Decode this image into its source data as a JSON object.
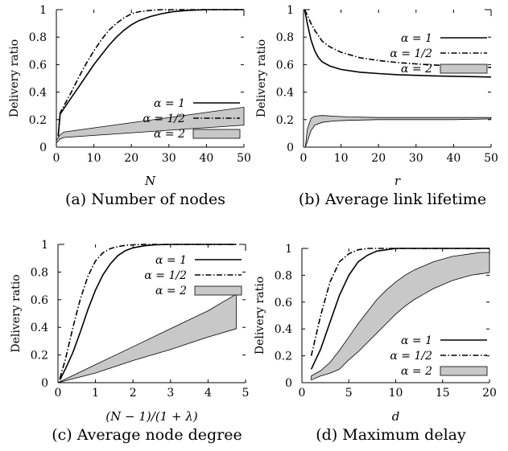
{
  "chart_data": [
    {
      "type": "line",
      "caption": "(a) Number of nodes",
      "xlabel": "N",
      "ylabel": "Delivery ratio",
      "xlim": [
        0,
        50
      ],
      "ylim": [
        0,
        1
      ],
      "xticks": [
        0,
        10,
        20,
        30,
        40,
        50
      ],
      "yticks": [
        0,
        0.2,
        0.4,
        0.6,
        0.8,
        1
      ],
      "legend_position": "middle-right",
      "grid": false,
      "series": [
        {
          "name": "α = 1",
          "style": "solid",
          "x": [
            0.5,
            1,
            2,
            4,
            6,
            8,
            10,
            12,
            14,
            16,
            18,
            20,
            22,
            25,
            28,
            31,
            35,
            40,
            45,
            50
          ],
          "y": [
            0.08,
            0.24,
            0.28,
            0.36,
            0.44,
            0.52,
            0.6,
            0.67,
            0.74,
            0.8,
            0.85,
            0.89,
            0.92,
            0.95,
            0.97,
            0.985,
            0.995,
            1.0,
            1.0,
            1.0
          ]
        },
        {
          "name": "α = 1/2",
          "style": "dashdot",
          "x": [
            0.5,
            1,
            2,
            4,
            6,
            8,
            10,
            12,
            14,
            16,
            18,
            20,
            22,
            25,
            28,
            31,
            35,
            40,
            45,
            50
          ],
          "y": [
            0.08,
            0.25,
            0.3,
            0.4,
            0.51,
            0.61,
            0.7,
            0.78,
            0.85,
            0.9,
            0.94,
            0.97,
            0.985,
            0.995,
            1.0,
            1.0,
            1.0,
            1.0,
            1.0,
            1.0
          ]
        },
        {
          "name": "α = 2",
          "style": "band",
          "x": [
            0,
            1,
            2,
            50
          ],
          "lower": [
            0.03,
            0.06,
            0.07,
            0.16
          ],
          "upper": [
            0.05,
            0.09,
            0.11,
            0.29
          ]
        }
      ]
    },
    {
      "type": "line",
      "caption": "(b) Average link lifetime",
      "xlabel": "r",
      "ylabel": "Delivery ratio",
      "xlim": [
        0,
        50
      ],
      "ylim": [
        0,
        1
      ],
      "xticks": [
        0,
        10,
        20,
        30,
        40,
        50
      ],
      "yticks": [
        0,
        0.2,
        0.4,
        0.6,
        0.8,
        1
      ],
      "legend_position": "top-right",
      "grid": false,
      "series": [
        {
          "name": "α = 1",
          "style": "solid",
          "x": [
            0.3,
            1,
            2,
            3,
            4,
            5,
            7,
            10,
            15,
            20,
            25,
            30,
            35,
            40,
            45,
            50
          ],
          "y": [
            1.0,
            0.9,
            0.78,
            0.7,
            0.65,
            0.62,
            0.59,
            0.565,
            0.545,
            0.535,
            0.527,
            0.522,
            0.518,
            0.515,
            0.513,
            0.51
          ]
        },
        {
          "name": "α = 1/2",
          "style": "dashdot",
          "x": [
            0.3,
            1,
            2,
            3,
            4,
            5,
            7,
            10,
            15,
            20,
            25,
            30,
            35,
            40,
            45,
            50
          ],
          "y": [
            1.0,
            0.96,
            0.9,
            0.85,
            0.81,
            0.77,
            0.73,
            0.69,
            0.65,
            0.63,
            0.615,
            0.605,
            0.597,
            0.59,
            0.585,
            0.58
          ]
        },
        {
          "name": "α = 2",
          "style": "band",
          "x": [
            0.3,
            0.5,
            1,
            2,
            3,
            5,
            8,
            12,
            20,
            30,
            40,
            50
          ],
          "lower": [
            0.0,
            0.0,
            0.04,
            0.12,
            0.16,
            0.18,
            0.19,
            0.195,
            0.2,
            0.2,
            0.2,
            0.205
          ],
          "upper": [
            0.0,
            0.0,
            0.13,
            0.21,
            0.225,
            0.23,
            0.225,
            0.22,
            0.215,
            0.215,
            0.215,
            0.215
          ]
        }
      ]
    },
    {
      "type": "line",
      "caption": "(c) Average node degree",
      "xlabel": "(N − 1)/(1 + λ)",
      "ylabel": "Delivery ratio",
      "xlim": [
        0,
        5
      ],
      "ylim": [
        0,
        1
      ],
      "xticks": [
        0,
        1,
        2,
        3,
        4,
        5
      ],
      "yticks": [
        0,
        0.2,
        0.4,
        0.6,
        0.8,
        1
      ],
      "legend_position": "top-right",
      "grid": false,
      "series": [
        {
          "name": "α = 1",
          "style": "solid",
          "x": [
            0.05,
            0.2,
            0.4,
            0.6,
            0.8,
            1.0,
            1.2,
            1.4,
            1.6,
            1.8,
            2.0,
            2.3,
            2.6,
            3.0,
            3.5,
            4.0,
            4.75
          ],
          "y": [
            0.02,
            0.1,
            0.22,
            0.37,
            0.53,
            0.67,
            0.78,
            0.86,
            0.92,
            0.955,
            0.975,
            0.99,
            0.997,
            1.0,
            1.0,
            1.0,
            1.0
          ]
        },
        {
          "name": "α = 1/2",
          "style": "dashdot",
          "x": [
            0.05,
            0.2,
            0.4,
            0.6,
            0.8,
            1.0,
            1.2,
            1.4,
            1.6,
            1.8,
            2.0,
            2.3,
            2.6,
            3.0,
            3.5,
            4.0,
            4.75
          ],
          "y": [
            0.03,
            0.17,
            0.4,
            0.61,
            0.77,
            0.88,
            0.94,
            0.97,
            0.985,
            0.993,
            0.997,
            1.0,
            1.0,
            1.0,
            1.0,
            1.0,
            1.0
          ]
        },
        {
          "name": "α = 2",
          "style": "band",
          "x": [
            0,
            1,
            2,
            3,
            4,
            4.75
          ],
          "lower": [
            0.0,
            0.07,
            0.16,
            0.24,
            0.33,
            0.39
          ],
          "upper": [
            0.0,
            0.13,
            0.26,
            0.39,
            0.52,
            0.64
          ]
        }
      ]
    },
    {
      "type": "line",
      "caption": "(d) Maximum delay",
      "xlabel": "d",
      "ylabel": "Delivery ratio",
      "xlim": [
        0,
        20
      ],
      "ylim": [
        0,
        1
      ],
      "xticks": [
        0,
        5,
        10,
        15,
        20
      ],
      "yticks": [
        0,
        0.2,
        0.4,
        0.6,
        0.8,
        1
      ],
      "legend_position": "bottom-right",
      "grid": false,
      "series": [
        {
          "name": "α = 1",
          "style": "solid",
          "x": [
            1,
            2,
            3,
            4,
            5,
            6,
            7,
            8,
            9,
            10,
            12,
            15,
            20
          ],
          "y": [
            0.1,
            0.25,
            0.45,
            0.65,
            0.8,
            0.9,
            0.95,
            0.98,
            0.99,
            1.0,
            1.0,
            1.0,
            1.0
          ]
        },
        {
          "name": "α = 1/2",
          "style": "dashdot",
          "x": [
            1,
            2,
            3,
            4,
            5,
            6,
            7,
            8,
            10,
            12,
            15,
            20
          ],
          "y": [
            0.2,
            0.5,
            0.75,
            0.9,
            0.96,
            0.99,
            1.0,
            1.0,
            1.0,
            1.0,
            1.0,
            1.0
          ]
        },
        {
          "name": "α = 2",
          "style": "band",
          "x": [
            1,
            2,
            3,
            4,
            5,
            6,
            7,
            8,
            9,
            10,
            11,
            12,
            13,
            14,
            15,
            16,
            17,
            18,
            19,
            20
          ],
          "lower": [
            0.02,
            0.05,
            0.07,
            0.1,
            0.17,
            0.23,
            0.3,
            0.37,
            0.44,
            0.51,
            0.57,
            0.62,
            0.66,
            0.7,
            0.73,
            0.76,
            0.78,
            0.8,
            0.81,
            0.82
          ],
          "upper": [
            0.05,
            0.09,
            0.15,
            0.24,
            0.34,
            0.44,
            0.53,
            0.62,
            0.69,
            0.75,
            0.8,
            0.84,
            0.87,
            0.9,
            0.92,
            0.94,
            0.95,
            0.96,
            0.97,
            0.97
          ]
        }
      ]
    }
  ]
}
